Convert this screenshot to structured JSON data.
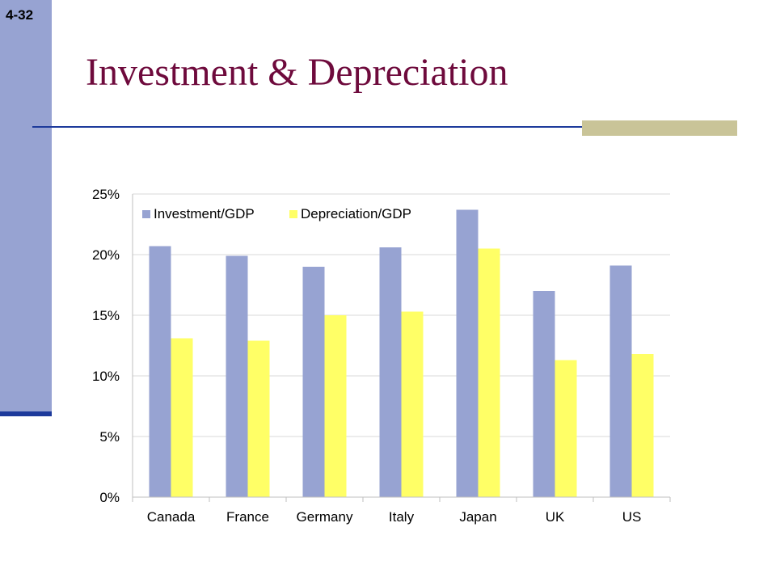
{
  "slide": {
    "number": "4-32",
    "title": "Investment & Depreciation"
  },
  "colors": {
    "title": "#6e0a3c",
    "sidebar": "#97a3d2",
    "rule": "#1d3a9b",
    "accent": "#c9c498"
  },
  "chart_data": {
    "type": "bar",
    "categories": [
      "Canada",
      "France",
      "Germany",
      "Italy",
      "Japan",
      "UK",
      "US"
    ],
    "series": [
      {
        "name": "Investment/GDP",
        "color": "#97a3d2",
        "values": [
          20.7,
          19.9,
          19.0,
          20.6,
          23.7,
          17.0,
          19.1
        ]
      },
      {
        "name": "Depreciation/GDP",
        "color": "#ffff66",
        "values": [
          13.1,
          12.9,
          15.0,
          15.3,
          20.5,
          11.3,
          11.8
        ]
      }
    ],
    "ylim": [
      0,
      25
    ],
    "yticks": [
      "0%",
      "5%",
      "10%",
      "15%",
      "20%",
      "25%"
    ],
    "ytick_values": [
      0,
      5,
      10,
      15,
      20,
      25
    ],
    "unit": "%",
    "grid": true,
    "legend": "top-left"
  }
}
